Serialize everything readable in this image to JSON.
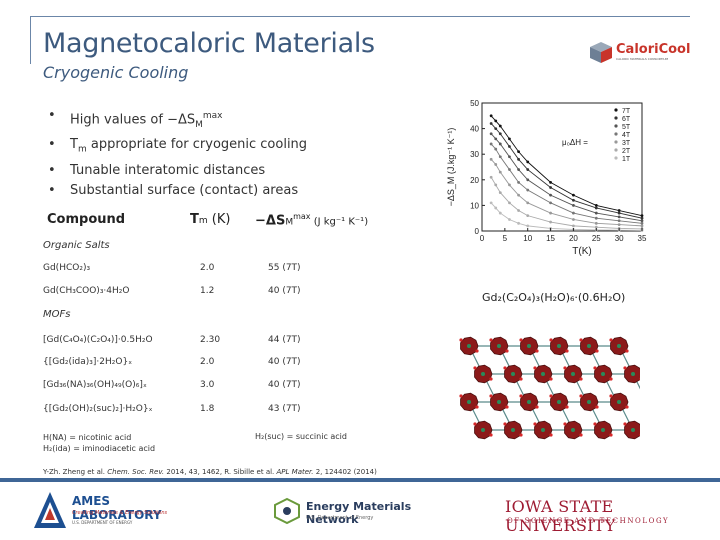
{
  "header": {
    "title": "Magnetocaloric Materials",
    "subtitle": "Cryogenic Cooling"
  },
  "bullets": [
    {
      "pre": "High values of −ΔS",
      "sub": "M",
      "sup": "max",
      "post": ""
    },
    {
      "pre": "T",
      "sub": "m",
      "sup": "",
      "post": " appropriate for cryogenic cooling"
    },
    {
      "pre": "Tunable interatomic distances",
      "sub": "",
      "sup": "",
      "post": ""
    },
    {
      "pre": "Substantial surface (contact) areas",
      "sub": "",
      "sup": "",
      "post": ""
    }
  ],
  "table": {
    "headers": {
      "compound": "Compound",
      "tm_pre": "T",
      "tm_sub": "m",
      "tm_post": " (K)",
      "ds_pre": "−ΔS",
      "ds_sub": "M",
      "ds_sup": "max",
      "ds_post": " (J kg⁻¹ K⁻¹)"
    },
    "organic_label": "Organic Salts",
    "mofs_label": "MOFs",
    "rows": [
      {
        "c": "Gd(HCO₂)₃",
        "t": "2.0",
        "d": "55 (7T)"
      },
      {
        "c": "Gd(CH₃COO)₃·4H₂O",
        "t": "1.2",
        "d": "40 (7T)"
      },
      {
        "c": "[Gd(C₄O₄)(C₂O₄)]·0.5H₂O",
        "t": "2.30",
        "d": "44 (7T)"
      },
      {
        "c": "{[Gd₂(ida)₃]·2H₂O}ₓ",
        "t": "2.0",
        "d": "40 (7T)"
      },
      {
        "c": "[Gd₃₆(NA)₃₆(OH)₄₉(O)₆]ₓ",
        "t": "3.0",
        "d": "40 (7T)"
      },
      {
        "c": "{[Gd₂(OH)₂(suc)₂]·H₂O}ₓ",
        "t": "1.8",
        "d": "43 (7T)"
      }
    ]
  },
  "footnotes": {
    "na": "H(NA) = nicotinic acid",
    "ida": "H₂(ida) = iminodiacetic acid",
    "suc": "H₂(suc) = succinic acid",
    "reference_prefix": "Y-Zh. Zheng et al. ",
    "reference_j1": "Chem. Soc. Rev.",
    "reference_mid": " 2014, 43, 1462, R. Sibille et al. ",
    "reference_j2": "APL Mater.",
    "reference_suffix": " 2, 124402 (2014)"
  },
  "figure": {
    "caption": "Gd₂(C₂O₄)₃(H₂O)₆·(0.6H₂O)"
  },
  "chart_data": {
    "type": "line",
    "title": "",
    "xlabel": "T(K)",
    "ylabel": "−ΔS_M (J.kg⁻¹ K⁻¹)",
    "xlim": [
      0,
      35
    ],
    "ylim": [
      0,
      50
    ],
    "xticks": [
      0,
      5,
      10,
      15,
      20,
      25,
      30,
      35
    ],
    "yticks": [
      0,
      10,
      20,
      30,
      40,
      50
    ],
    "annotation": "μ₀ΔH =",
    "x": [
      2,
      3,
      4,
      6,
      8,
      10,
      15,
      20,
      25,
      30,
      35
    ],
    "series": [
      {
        "name": "7T",
        "values": [
          45,
          43,
          41,
          36,
          31,
          27,
          19,
          14,
          10,
          8,
          6
        ]
      },
      {
        "name": "6T",
        "values": [
          42,
          40,
          38,
          33,
          28,
          24,
          17,
          12,
          9,
          7,
          5
        ]
      },
      {
        "name": "5T",
        "values": [
          38,
          36,
          34,
          29,
          24,
          20,
          14,
          10,
          7,
          5.5,
          4
        ]
      },
      {
        "name": "4T",
        "values": [
          34,
          32,
          29,
          24,
          19,
          16,
          11,
          7,
          5,
          4,
          3
        ]
      },
      {
        "name": "3T",
        "values": [
          28,
          26,
          23,
          18,
          14,
          11,
          7,
          4.5,
          3,
          2.5,
          2
        ]
      },
      {
        "name": "2T",
        "values": [
          21,
          18,
          15,
          11,
          8,
          6,
          3.5,
          2,
          1.5,
          1,
          0.8
        ]
      },
      {
        "name": "1T",
        "values": [
          11,
          9,
          7,
          4.5,
          3,
          2,
          1,
          0.6,
          0.4,
          0.3,
          0.2
        ]
      }
    ]
  },
  "logos": {
    "caloricool_name": "CaloriCool",
    "caloricool_sub": "CALORIC MATERIALS CONSORTIUM",
    "ames_name": "AMES LABORATORY",
    "ames_tagline": "Creating Materials & Energy Solutions",
    "ames_doe": "U.S. DEPARTMENT OF ENERGY",
    "emn_name": "Energy Materials Network",
    "emn_sub": "U.S. Department of Energy",
    "isu_name": "IOWA STATE UNIVERSITY",
    "isu_sub": "OF SCIENCE AND TECHNOLOGY"
  },
  "colors": {
    "title": "#3d5a7e",
    "frame": "#6b86a8",
    "bar": "#3f6696",
    "isu": "#9e1b32",
    "ames": "#1d4f91"
  }
}
